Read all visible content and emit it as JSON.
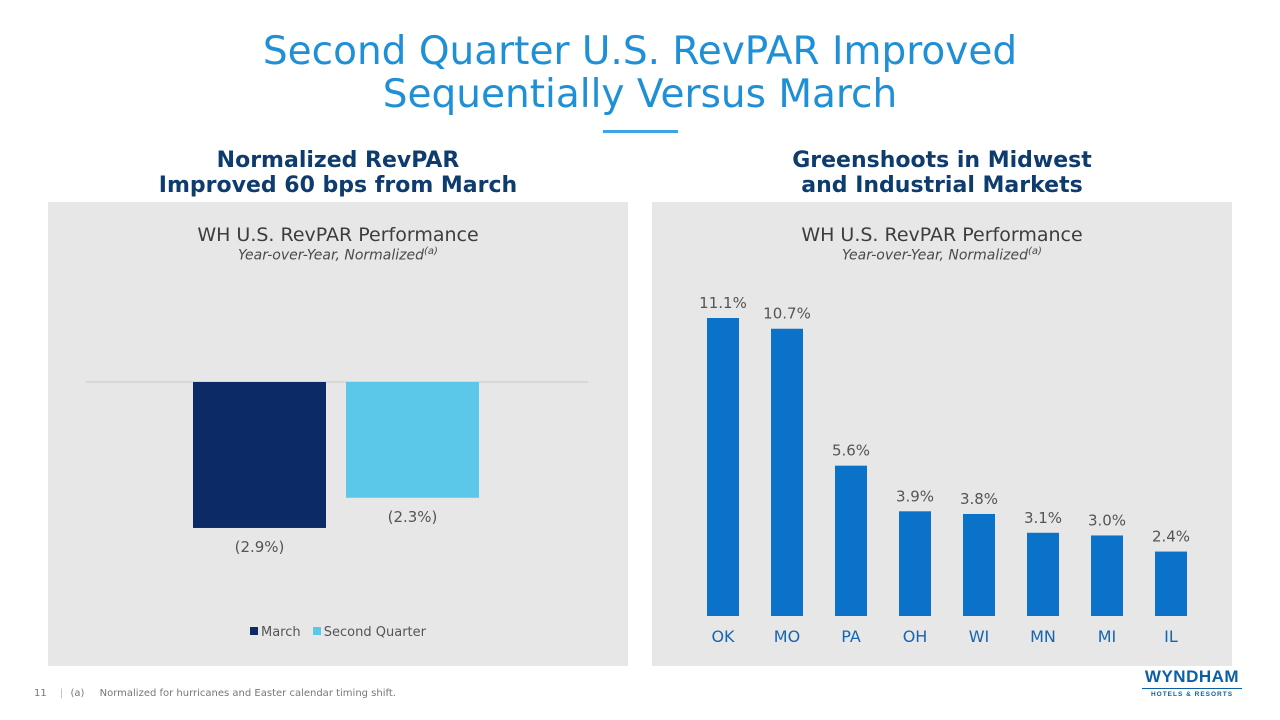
{
  "page": {
    "title_line1": "Second Quarter U.S. RevPAR Improved",
    "title_line2": "Sequentially Versus March",
    "left_heading_line1": "Normalized RevPAR",
    "left_heading_line2": "Improved 60 bps from March",
    "right_heading_line1": "Greenshoots in Midwest",
    "right_heading_line2": "and Industrial Markets",
    "page_number": "11",
    "footnote_mark": "(a)",
    "footnote_text": "Normalized for hurricanes and Easter calendar timing shift.",
    "logo_text": "WYNDHAM",
    "logo_subtext": "HOTELS & RESORTS"
  },
  "colors": {
    "march": "#0b2a66",
    "second_quarter": "#5bc8ea",
    "state_bars": "#0a72c8"
  },
  "chart_data": [
    {
      "type": "bar",
      "title": "WH U.S. RevPAR Performance",
      "subtitle": "Year-over-Year, Normalized",
      "subtitle_sup": "(a)",
      "series": [
        {
          "name": "March",
          "values": [
            -2.9
          ],
          "label": "(2.9%)"
        },
        {
          "name": "Second Quarter",
          "values": [
            -2.3
          ],
          "label": "(2.3%)"
        }
      ],
      "legend": [
        "March",
        "Second Quarter"
      ],
      "legend_position": "bottom",
      "ylim": [
        -3.0,
        0
      ]
    },
    {
      "type": "bar",
      "title": "WH U.S. RevPAR Performance",
      "subtitle": "Year-over-Year, Normalized",
      "subtitle_sup": "(a)",
      "categories": [
        "OK",
        "MO",
        "PA",
        "OH",
        "WI",
        "MN",
        "MI",
        "IL"
      ],
      "values": [
        11.1,
        10.7,
        5.6,
        3.9,
        3.8,
        3.1,
        3.0,
        2.4
      ],
      "labels": [
        "11.1%",
        "10.7%",
        "5.6%",
        "3.9%",
        "3.8%",
        "3.1%",
        "3.0%",
        "2.4%"
      ],
      "ylim": [
        0,
        11.1
      ]
    }
  ]
}
